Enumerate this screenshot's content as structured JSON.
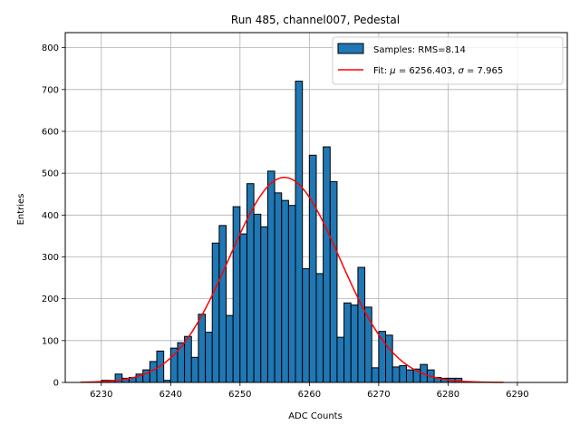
{
  "chart_data": {
    "type": "bar",
    "title": "Run 485, channel007, Pedestal",
    "xlabel": "ADC Counts",
    "ylabel": "Entries",
    "xlim": [
      6224.8,
      6297.2
    ],
    "ylim": [
      0,
      836
    ],
    "xticks": [
      6230,
      6240,
      6250,
      6260,
      6270,
      6280,
      6290
    ],
    "yticks": [
      0,
      100,
      200,
      300,
      400,
      500,
      600,
      700,
      800
    ],
    "grid": true,
    "legend_position": "top-right",
    "histogram": {
      "name": "Samples: RMS=8.14",
      "color": "#1f77b4",
      "edge_color": "#000000",
      "bin_width": 1,
      "bin_starts": [
        6230,
        6231,
        6232,
        6233,
        6234,
        6235,
        6236,
        6237,
        6238,
        6239,
        6240,
        6241,
        6242,
        6243,
        6244,
        6245,
        6246,
        6247,
        6248,
        6249,
        6250,
        6251,
        6252,
        6253,
        6254,
        6255,
        6256,
        6257,
        6258,
        6259,
        6260,
        6261,
        6262,
        6263,
        6264,
        6265,
        6266,
        6267,
        6268,
        6269,
        6270,
        6271,
        6272,
        6273,
        6274,
        6275,
        6276,
        6277,
        6278,
        6279,
        6280,
        6281
      ],
      "values": [
        5,
        5,
        20,
        10,
        12,
        20,
        30,
        50,
        75,
        5,
        82,
        95,
        110,
        60,
        163,
        120,
        333,
        375,
        160,
        420,
        355,
        475,
        402,
        372,
        505,
        453,
        435,
        423,
        720,
        272,
        543,
        260,
        563,
        480,
        108,
        190,
        185,
        275,
        180,
        35,
        122,
        113,
        37,
        40,
        30,
        32,
        43,
        30,
        12,
        10,
        10,
        10
      ]
    },
    "fit": {
      "name": "Fit: μ = 6256.403, σ = 7.965",
      "label_prefix": "Fit: ",
      "mu_symbol": "μ",
      "mu_value": " = 6256.403, ",
      "sigma_symbol": "σ",
      "sigma_value": " = 7.965",
      "color": "#ff0000",
      "mu": 6256.403,
      "sigma": 7.965,
      "amplitude": 490,
      "x_range": [
        6227,
        6288
      ]
    }
  }
}
